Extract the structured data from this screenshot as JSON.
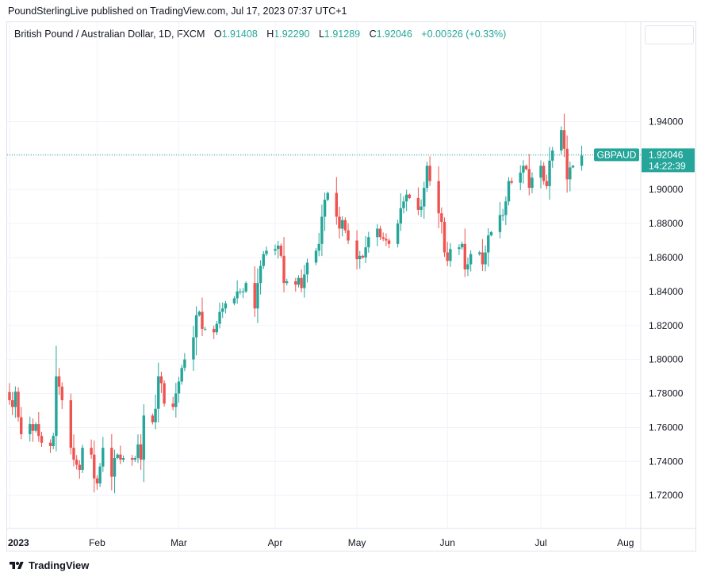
{
  "header": {
    "published_by": "PoundSterlingLive published on TradingView.com, Jul 17, 2023 07:37 UTC+1"
  },
  "legend": {
    "symbol": "British Pound / Australian Dollar, 1D, FXCM",
    "open_label": "O",
    "open_value": "1.91408",
    "high_label": "H",
    "high_value": "1.92290",
    "low_label": "L",
    "low_value": "1.91289",
    "close_label": "C",
    "close_value": "1.92046",
    "change": "+0.00626 (+0.33%)"
  },
  "price_tag": {
    "ticker": "GBPAUD",
    "price": "1.92046",
    "countdown": "14:22:39"
  },
  "footer": {
    "brand": "TradingView"
  },
  "colors": {
    "up": "#26a69a",
    "down": "#ef5350",
    "grid": "#f0f3fa"
  },
  "chart_data": {
    "type": "candlestick",
    "y_ticks": [
      "1.94000",
      "1.92000",
      "1.90000",
      "1.88000",
      "1.86000",
      "1.84000",
      "1.82000",
      "1.80000",
      "1.78000",
      "1.76000",
      "1.74000",
      "1.72000"
    ],
    "y_tick_values": [
      1.94,
      1.92,
      1.9,
      1.88,
      1.86,
      1.84,
      1.82,
      1.8,
      1.78,
      1.76,
      1.74,
      1.72
    ],
    "ylim": [
      1.7005,
      1.9985
    ],
    "x_ticks": [
      {
        "label": "2023",
        "date": "2023-01-02",
        "bold": true
      },
      {
        "label": "Feb",
        "date": "2023-02-01"
      },
      {
        "label": "Mar",
        "date": "2023-03-01"
      },
      {
        "label": "Apr",
        "date": "2023-04-03"
      },
      {
        "label": "May",
        "date": "2023-05-01"
      },
      {
        "label": "Jun",
        "date": "2023-06-01"
      },
      {
        "label": "Jul",
        "date": "2023-07-03"
      },
      {
        "label": "Aug",
        "date": "2023-08-01"
      }
    ],
    "last_price": 1.92046,
    "closes": [
      {
        "date": "2022-12-30",
        "close": 1.7808
      },
      {
        "date": "2023-01-02",
        "close": 1.776
      },
      {
        "date": "2023-01-03",
        "close": 1.772
      },
      {
        "date": "2023-01-04",
        "close": 1.781
      },
      {
        "date": "2023-01-05",
        "close": 1.766
      },
      {
        "date": "2023-01-06",
        "close": 1.756
      },
      {
        "date": "2023-01-09",
        "close": 1.762
      },
      {
        "date": "2023-01-10",
        "close": 1.758
      },
      {
        "date": "2023-01-11",
        "close": 1.762
      },
      {
        "date": "2023-01-12",
        "close": 1.755
      },
      {
        "date": "2023-01-13",
        "close": 1.751
      },
      {
        "date": "2023-01-16",
        "close": 1.749
      },
      {
        "date": "2023-01-17",
        "close": 1.755
      },
      {
        "date": "2023-01-18",
        "close": 1.79
      },
      {
        "date": "2023-01-19",
        "close": 1.784
      },
      {
        "date": "2023-01-20",
        "close": 1.776
      },
      {
        "date": "2023-01-23",
        "close": 1.748
      },
      {
        "date": "2023-01-24",
        "close": 1.741
      },
      {
        "date": "2023-01-25",
        "close": 1.738
      },
      {
        "date": "2023-01-26",
        "close": 1.735
      },
      {
        "date": "2023-01-27",
        "close": 1.748
      },
      {
        "date": "2023-01-30",
        "close": 1.744
      },
      {
        "date": "2023-01-31",
        "close": 1.73
      },
      {
        "date": "2023-02-01",
        "close": 1.727
      },
      {
        "date": "2023-02-02",
        "close": 1.737
      },
      {
        "date": "2023-02-03",
        "close": 1.748
      },
      {
        "date": "2023-02-06",
        "close": 1.731
      },
      {
        "date": "2023-02-07",
        "close": 1.742
      },
      {
        "date": "2023-02-08",
        "close": 1.744
      },
      {
        "date": "2023-02-09",
        "close": 1.741
      },
      {
        "date": "2023-02-10",
        "close": 1.742
      },
      {
        "date": "2023-02-13",
        "close": 1.741
      },
      {
        "date": "2023-02-14",
        "close": 1.742
      },
      {
        "date": "2023-02-15",
        "close": 1.75
      },
      {
        "date": "2023-02-16",
        "close": 1.741
      },
      {
        "date": "2023-02-17",
        "close": 1.767
      },
      {
        "date": "2023-02-20",
        "close": 1.763
      },
      {
        "date": "2023-02-21",
        "close": 1.771
      },
      {
        "date": "2023-02-22",
        "close": 1.79
      },
      {
        "date": "2023-02-23",
        "close": 1.786
      },
      {
        "date": "2023-02-24",
        "close": 1.774
      },
      {
        "date": "2023-02-27",
        "close": 1.772
      },
      {
        "date": "2023-02-28",
        "close": 1.78
      },
      {
        "date": "2023-03-01",
        "close": 1.787
      },
      {
        "date": "2023-03-02",
        "close": 1.795
      },
      {
        "date": "2023-03-03",
        "close": 1.8
      },
      {
        "date": "2023-03-06",
        "close": 1.813
      },
      {
        "date": "2023-03-07",
        "close": 1.826
      },
      {
        "date": "2023-03-08",
        "close": 1.828
      },
      {
        "date": "2023-03-09",
        "close": 1.818
      },
      {
        "date": "2023-03-10",
        "close": 1.818
      },
      {
        "date": "2023-03-13",
        "close": 1.816
      },
      {
        "date": "2023-03-14",
        "close": 1.821
      },
      {
        "date": "2023-03-15",
        "close": 1.828
      },
      {
        "date": "2023-03-16",
        "close": 1.83
      },
      {
        "date": "2023-03-17",
        "close": 1.833
      },
      {
        "date": "2023-03-20",
        "close": 1.836
      },
      {
        "date": "2023-03-21",
        "close": 1.84
      },
      {
        "date": "2023-03-22",
        "close": 1.84
      },
      {
        "date": "2023-03-23",
        "close": 1.84
      },
      {
        "date": "2023-03-24",
        "close": 1.845
      },
      {
        "date": "2023-03-27",
        "close": 1.83
      },
      {
        "date": "2023-03-28",
        "close": 1.845
      },
      {
        "date": "2023-03-29",
        "close": 1.855
      },
      {
        "date": "2023-03-30",
        "close": 1.862
      },
      {
        "date": "2023-03-31",
        "close": 1.864
      },
      {
        "date": "2023-04-03",
        "close": 1.865
      },
      {
        "date": "2023-04-04",
        "close": 1.867
      },
      {
        "date": "2023-04-05",
        "close": 1.861
      },
      {
        "date": "2023-04-06",
        "close": 1.845
      },
      {
        "date": "2023-04-07",
        "close": 1.846
      },
      {
        "date": "2023-04-10",
        "close": 1.844
      },
      {
        "date": "2023-04-11",
        "close": 1.848
      },
      {
        "date": "2023-04-12",
        "close": 1.842
      },
      {
        "date": "2023-04-13",
        "close": 1.85
      },
      {
        "date": "2023-04-14",
        "close": 1.857
      },
      {
        "date": "2023-04-17",
        "close": 1.864
      },
      {
        "date": "2023-04-18",
        "close": 1.868
      },
      {
        "date": "2023-04-19",
        "close": 1.884
      },
      {
        "date": "2023-04-20",
        "close": 1.894
      },
      {
        "date": "2023-04-21",
        "close": 1.898
      },
      {
        "date": "2023-04-24",
        "close": 1.884
      },
      {
        "date": "2023-04-25",
        "close": 1.877
      },
      {
        "date": "2023-04-26",
        "close": 1.882
      },
      {
        "date": "2023-04-27",
        "close": 1.876
      },
      {
        "date": "2023-04-28",
        "close": 1.87
      },
      {
        "date": "2023-05-01",
        "close": 1.859
      },
      {
        "date": "2023-05-02",
        "close": 1.861
      },
      {
        "date": "2023-05-03",
        "close": 1.86
      },
      {
        "date": "2023-05-04",
        "close": 1.866
      },
      {
        "date": "2023-05-05",
        "close": 1.872
      },
      {
        "date": "2023-05-08",
        "close": 1.877
      },
      {
        "date": "2023-05-09",
        "close": 1.872
      },
      {
        "date": "2023-05-10",
        "close": 1.871
      },
      {
        "date": "2023-05-11",
        "close": 1.87
      },
      {
        "date": "2023-05-12",
        "close": 1.868
      },
      {
        "date": "2023-05-15",
        "close": 1.88
      },
      {
        "date": "2023-05-16",
        "close": 1.889
      },
      {
        "date": "2023-05-17",
        "close": 1.893
      },
      {
        "date": "2023-05-18",
        "close": 1.897
      },
      {
        "date": "2023-05-19",
        "close": 1.895
      },
      {
        "date": "2023-05-22",
        "close": 1.888
      },
      {
        "date": "2023-05-23",
        "close": 1.89
      },
      {
        "date": "2023-05-24",
        "close": 1.901
      },
      {
        "date": "2023-05-25",
        "close": 1.914
      },
      {
        "date": "2023-05-26",
        "close": 1.905
      },
      {
        "date": "2023-05-29",
        "close": 1.886
      },
      {
        "date": "2023-05-30",
        "close": 1.881
      },
      {
        "date": "2023-05-31",
        "close": 1.863
      },
      {
        "date": "2023-06-01",
        "close": 1.858
      },
      {
        "date": "2023-06-02",
        "close": 1.865
      },
      {
        "date": "2023-06-05",
        "close": 1.866
      },
      {
        "date": "2023-06-06",
        "close": 1.868
      },
      {
        "date": "2023-06-07",
        "close": 1.853
      },
      {
        "date": "2023-06-08",
        "close": 1.856
      },
      {
        "date": "2023-06-09",
        "close": 1.862
      },
      {
        "date": "2023-06-12",
        "close": 1.863
      },
      {
        "date": "2023-06-13",
        "close": 1.856
      },
      {
        "date": "2023-06-14",
        "close": 1.863
      },
      {
        "date": "2023-06-15",
        "close": 1.873
      },
      {
        "date": "2023-06-16",
        "close": 1.875
      },
      {
        "date": "2023-06-19",
        "close": 1.885
      },
      {
        "date": "2023-06-20",
        "close": 1.885
      },
      {
        "date": "2023-06-21",
        "close": 1.893
      },
      {
        "date": "2023-06-22",
        "close": 1.905
      },
      {
        "date": "2023-06-23",
        "close": 1.904
      },
      {
        "date": "2023-06-26",
        "close": 1.91
      },
      {
        "date": "2023-06-27",
        "close": 1.914
      },
      {
        "date": "2023-06-28",
        "close": 1.912
      },
      {
        "date": "2023-06-29",
        "close": 1.901
      },
      {
        "date": "2023-06-30",
        "close": 1.907
      },
      {
        "date": "2023-07-03",
        "close": 1.914
      },
      {
        "date": "2023-07-04",
        "close": 1.905
      },
      {
        "date": "2023-07-05",
        "close": 1.902
      },
      {
        "date": "2023-07-06",
        "close": 1.917
      },
      {
        "date": "2023-07-07",
        "close": 1.923
      },
      {
        "date": "2023-07-10",
        "close": 1.935
      },
      {
        "date": "2023-07-11",
        "close": 1.924
      },
      {
        "date": "2023-07-12",
        "close": 1.906
      },
      {
        "date": "2023-07-13",
        "close": 1.913
      },
      {
        "date": "2023-07-14",
        "close": 1.914
      },
      {
        "date": "2023-07-17",
        "close": 1.92
      }
    ]
  }
}
